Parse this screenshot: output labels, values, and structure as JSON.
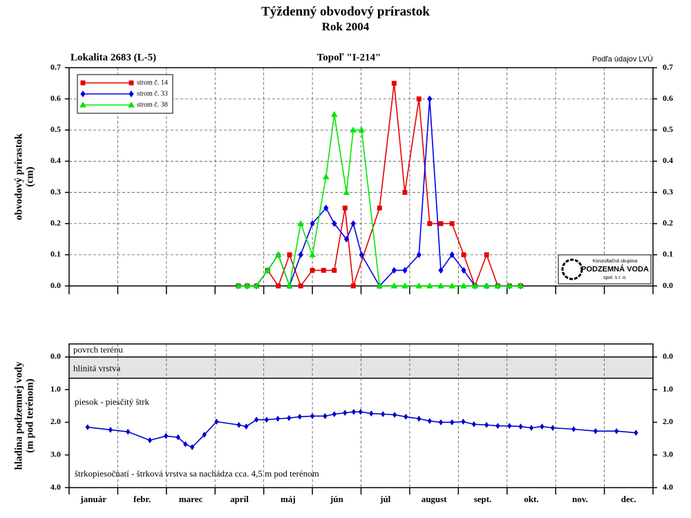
{
  "header": {
    "title": "Týždenný obvodový prírastok",
    "subtitle": "Rok 2004"
  },
  "chart_data": [
    {
      "type": "line",
      "annotations": {
        "left": "Lokalita 2683 (L-5)",
        "center": "Topoľ \"I-214\"",
        "right": "Podľa údajov LVÚ"
      },
      "logo": {
        "top": "Konzultačná skupina",
        "name": "PODZEMNÁ VODA",
        "bottom": "spol. s r. o."
      },
      "ylabel": [
        "obvodový prírastok",
        "(cm)"
      ],
      "xlim": [
        0,
        12
      ],
      "xticks": [
        0,
        1,
        2,
        3,
        4,
        5,
        6,
        7,
        8,
        9,
        10,
        11,
        12
      ],
      "ylim": [
        0,
        0.7
      ],
      "yticks": [
        {
          "value": 0,
          "label": "0.0"
        },
        0.1,
        0.2,
        0.3,
        0.4,
        0.5,
        0.6,
        0.7
      ],
      "grid": true,
      "legend": "upper left",
      "series": [
        {
          "name": "strom č. 14",
          "color": "#e60000",
          "marker": "square",
          "x": [
            3.48,
            3.66,
            3.85,
            4.08,
            4.3,
            4.53,
            4.76,
            5.0,
            5.23,
            5.45,
            5.67,
            5.84,
            6.38,
            6.68,
            6.9,
            7.19,
            7.41,
            7.64,
            7.87,
            8.11,
            8.34,
            8.58,
            8.81,
            9.05,
            9.28
          ],
          "values": [
            0,
            0,
            0,
            0.05,
            0,
            0.1,
            0,
            0.05,
            0.05,
            0.05,
            0.25,
            0,
            0.25,
            0.65,
            0.3,
            0.6,
            0.2,
            0.2,
            0.2,
            0.1,
            0,
            0.1,
            0,
            0,
            0
          ]
        },
        {
          "name": "strom č. 33",
          "color": "#0000e6",
          "marker": "diamond",
          "x": [
            3.48,
            3.66,
            3.85,
            4.08,
            4.3,
            4.53,
            4.76,
            5.0,
            5.28,
            5.45,
            5.7,
            5.84,
            6.01,
            6.38,
            6.68,
            6.9,
            7.19,
            7.41,
            7.64,
            7.87,
            8.11,
            8.34,
            8.58,
            8.81,
            9.05,
            9.28
          ],
          "values": [
            0,
            0,
            0,
            0.05,
            0.1,
            0,
            0.1,
            0.2,
            0.25,
            0.2,
            0.15,
            0.2,
            0.1,
            0,
            0.05,
            0.05,
            0.1,
            0.6,
            0.05,
            0.1,
            0.05,
            0,
            0,
            0,
            0,
            0
          ]
        },
        {
          "name": "strom č. 38",
          "color": "#00e600",
          "marker": "triangle",
          "x": [
            3.48,
            3.66,
            3.85,
            4.08,
            4.3,
            4.53,
            4.76,
            5.0,
            5.28,
            5.45,
            5.7,
            5.84,
            6.01,
            6.38,
            6.68,
            6.9,
            7.19,
            7.41,
            7.64,
            7.87,
            8.11,
            8.34,
            8.58,
            8.81,
            9.05,
            9.28
          ],
          "values": [
            0,
            0,
            0,
            0.05,
            0.1,
            0,
            0.2,
            0.1,
            0.35,
            0.55,
            0.3,
            0.5,
            0.5,
            0,
            0,
            0,
            0,
            0,
            0,
            0,
            0,
            0,
            0,
            0,
            0,
            0
          ]
        }
      ]
    },
    {
      "type": "line",
      "ylabel": [
        "hladina podzemnej vody",
        "(m pod terénom)"
      ],
      "categories": [
        "január",
        "febr.",
        "marec",
        "apríl",
        "máj",
        "jún",
        "júl",
        "august",
        "sept.",
        "okt.",
        "nov.",
        "dec."
      ],
      "xlim": [
        0,
        12
      ],
      "xticks": [
        0,
        1,
        2,
        3,
        4,
        5,
        6,
        7,
        8,
        9,
        10,
        11,
        12
      ],
      "ylim": [
        4,
        -0.4
      ],
      "yticks": [
        {
          "value": 0,
          "label": "0.0"
        },
        {
          "value": 1,
          "label": "1.0"
        },
        {
          "value": 2,
          "label": "2.0"
        },
        {
          "value": 3,
          "label": "3.0"
        },
        {
          "value": 4,
          "label": "4.0"
        }
      ],
      "grid": true,
      "surface": "povrch terénu",
      "layers": [
        {
          "label": "hlinitá vrstva",
          "top": 0,
          "bottom": 0.65
        }
      ],
      "annotations": [
        "piesok - piesčitý štrk",
        "štrkopiesočnatí - štrková vrstva sa nachádza cca. 4,5 m pod terénom"
      ],
      "color": "#0000c8",
      "marker": "diamond",
      "x": [
        0.38,
        0.85,
        1.21,
        1.66,
        1.99,
        2.24,
        2.39,
        2.53,
        2.78,
        3.03,
        3.49,
        3.64,
        3.85,
        4.06,
        4.29,
        4.52,
        4.74,
        5.0,
        5.26,
        5.45,
        5.67,
        5.85,
        5.99,
        6.21,
        6.45,
        6.69,
        6.92,
        7.19,
        7.41,
        7.64,
        7.87,
        8.1,
        8.32,
        8.58,
        8.81,
        9.05,
        9.28,
        9.5,
        9.72,
        9.94,
        10.37,
        10.82,
        11.25,
        11.65
      ],
      "values": [
        2.15,
        2.23,
        2.29,
        2.55,
        2.42,
        2.46,
        2.67,
        2.76,
        2.38,
        1.98,
        2.08,
        2.13,
        1.92,
        1.92,
        1.89,
        1.87,
        1.83,
        1.81,
        1.81,
        1.75,
        1.71,
        1.68,
        1.68,
        1.73,
        1.75,
        1.77,
        1.83,
        1.89,
        1.96,
        2.0,
        2.0,
        1.98,
        2.06,
        2.08,
        2.11,
        2.11,
        2.13,
        2.17,
        2.13,
        2.17,
        2.21,
        2.27,
        2.27,
        2.32
      ]
    }
  ]
}
